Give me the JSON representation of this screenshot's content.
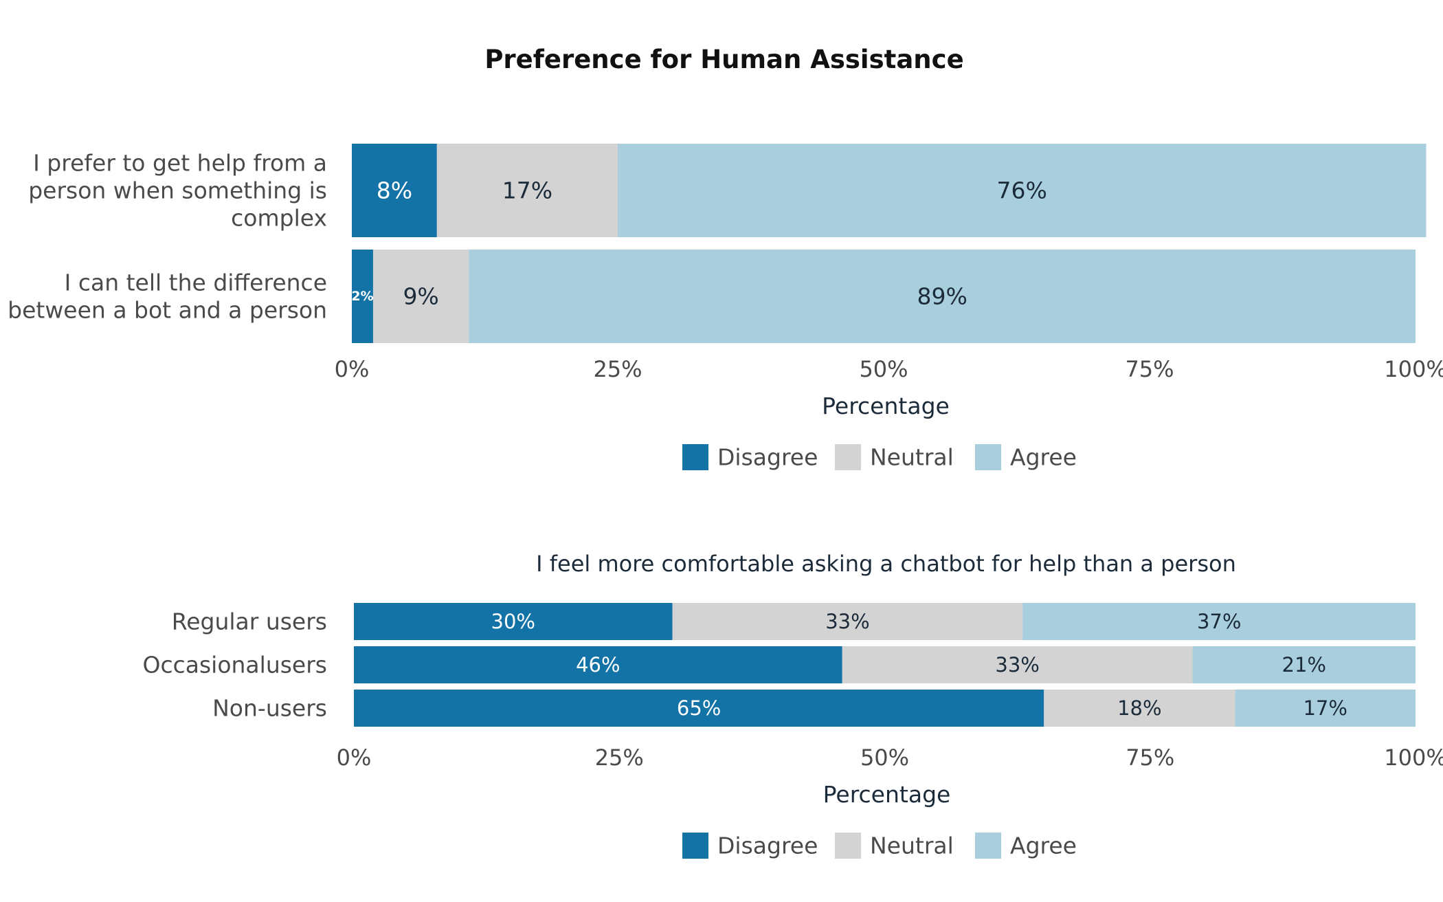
{
  "figure_title": "Preference for Human Assistance",
  "colors": {
    "Disagree": "#1473a6",
    "Neutral": "#d3d3d3",
    "Agree": "#a9cfde",
    "label_dark": "#1c2b3a",
    "label_light": "#ffffff"
  },
  "chart_data": [
    {
      "type": "bar",
      "orientation": "horizontal",
      "stacked": true,
      "title": "",
      "categories": [
        "I prefer to get help from a person when something is complex",
        "I can tell the difference between a bot and a person"
      ],
      "category_lines": [
        [
          "I prefer to get help from a",
          "person when something is",
          "complex"
        ],
        [
          "I can tell the difference",
          "between a bot and a person"
        ]
      ],
      "series": [
        {
          "name": "Disagree",
          "values": [
            8,
            2
          ],
          "labels": [
            "8%",
            "2%"
          ]
        },
        {
          "name": "Neutral",
          "values": [
            17,
            9
          ],
          "labels": [
            "17%",
            "9%"
          ]
        },
        {
          "name": "Agree",
          "values": [
            76,
            89
          ],
          "labels": [
            "76%",
            "89%"
          ]
        }
      ],
      "xlabel": "Percentage",
      "ylabel": "",
      "xlim": [
        0,
        100
      ],
      "xticks": [
        "0%",
        "25%",
        "50%",
        "75%",
        "100%"
      ],
      "legend": [
        "Disagree",
        "Neutral",
        "Agree"
      ],
      "legend_position": "bottom-center",
      "grid": false
    },
    {
      "type": "bar",
      "orientation": "horizontal",
      "stacked": true,
      "title": "I feel more comfortable asking a chatbot for help than a person",
      "categories": [
        "Regular users",
        "Occasionalusers",
        "Non-users"
      ],
      "category_lines": [
        [
          "Regular users"
        ],
        [
          "Occasionalusers"
        ],
        [
          "Non-users"
        ]
      ],
      "series": [
        {
          "name": "Disagree",
          "values": [
            30,
            46,
            65
          ],
          "labels": [
            "30%",
            "46%",
            "65%"
          ]
        },
        {
          "name": "Neutral",
          "values": [
            33,
            33,
            18
          ],
          "labels": [
            "33%",
            "33%",
            "18%"
          ]
        },
        {
          "name": "Agree",
          "values": [
            37,
            21,
            17
          ],
          "labels": [
            "37%",
            "21%",
            "17%"
          ]
        }
      ],
      "xlabel": "Percentage",
      "ylabel": "",
      "xlim": [
        0,
        100
      ],
      "xticks": [
        "0%",
        "25%",
        "50%",
        "75%",
        "100%"
      ],
      "legend": [
        "Disagree",
        "Neutral",
        "Agree"
      ],
      "legend_position": "bottom-center",
      "grid": false
    }
  ]
}
